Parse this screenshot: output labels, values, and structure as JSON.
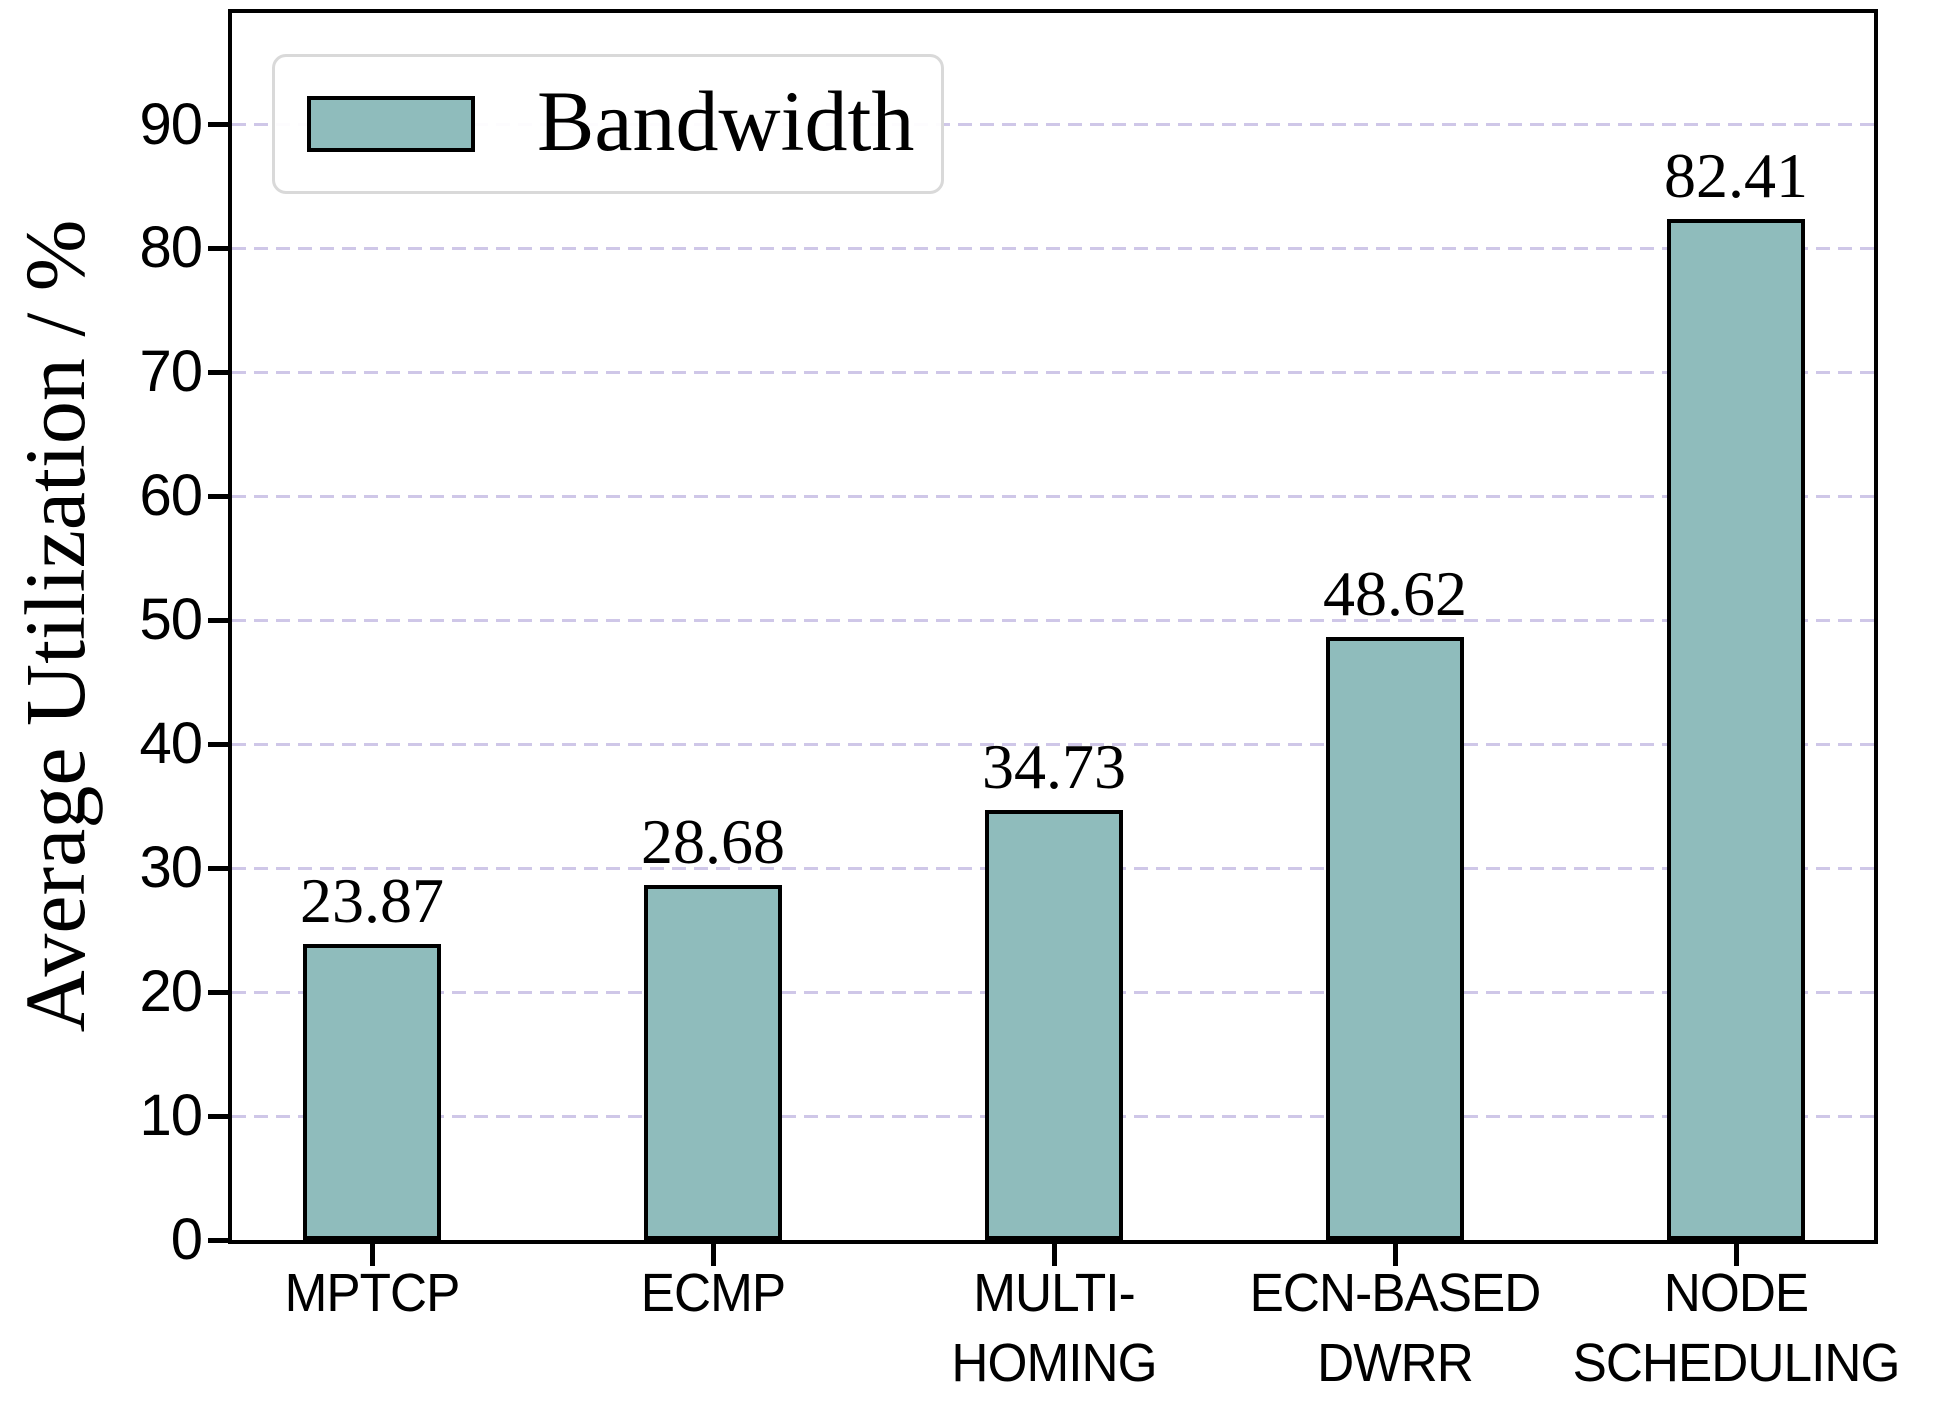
{
  "chart_data": {
    "type": "bar",
    "series_name": "Bandwidth",
    "categories": [
      [
        "MPTCP"
      ],
      [
        "ECMP"
      ],
      [
        "MULTI-",
        "HOMING"
      ],
      [
        "ECN-BASED",
        "DWRR"
      ],
      [
        "NODE",
        "SCHEDULING"
      ]
    ],
    "values": [
      23.87,
      28.68,
      34.73,
      48.62,
      82.41
    ],
    "value_labels": [
      "23.87",
      "28.68",
      "34.73",
      "48.62",
      "82.41"
    ],
    "ylabel": "Average Utilization / %",
    "yticks": [
      0,
      10,
      20,
      30,
      40,
      50,
      60,
      70,
      80,
      90
    ],
    "ylim": [
      0,
      99
    ],
    "grid": "horizontal-dashed",
    "legend_position": "upper-left",
    "bar_color": "#8fbcbc",
    "bar_edge_color": "#000000",
    "grid_color": "#cfc7e8"
  }
}
